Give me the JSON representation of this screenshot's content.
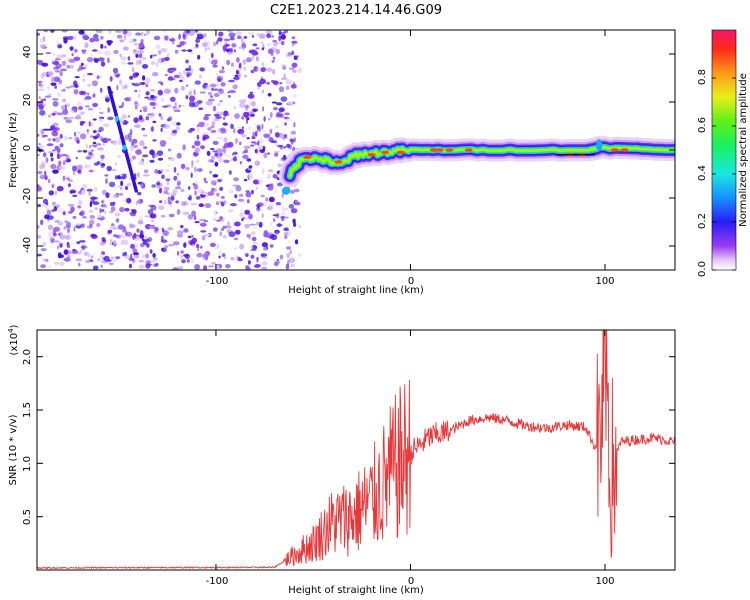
{
  "title": "C2E1.2023.214.14.46.G09",
  "chart_data": [
    {
      "type": "heatmap",
      "name": "spectrogram",
      "xlabel": "Height of straight line (km)",
      "ylabel": "Frequency (Hz)",
      "xlim": [
        -192,
        136
      ],
      "ylim": [
        -50,
        50
      ],
      "xticks": [
        -100,
        0,
        100
      ],
      "yticks": [
        -40,
        -20,
        0,
        20,
        40
      ],
      "xtick_labels": [
        "-100",
        "0",
        "100"
      ],
      "ytick_labels": [
        "-40",
        "-20",
        "0",
        "20",
        "40"
      ],
      "colorbar": {
        "label": "Normalized spectral amplitude",
        "range": [
          0,
          1
        ],
        "ticks": [
          0.0,
          0.2,
          0.4,
          0.6,
          0.8
        ],
        "tick_labels": [
          "0.0",
          "0.2",
          "0.4",
          "0.6",
          "0.8"
        ]
      },
      "features": {
        "noise_region_x": [
          -192,
          -60
        ],
        "diagonal_trace": [
          {
            "x": -155,
            "y": 26
          },
          {
            "x": -141,
            "y": -17
          }
        ],
        "signal_band_center_hz": [
          {
            "x": -62,
            "y": -10
          },
          {
            "x": -55,
            "y": -3
          },
          {
            "x": -45,
            "y": -4
          },
          {
            "x": -36,
            "y": -6
          },
          {
            "x": -28,
            "y": -2
          },
          {
            "x": -15,
            "y": -1
          },
          {
            "x": 0,
            "y": 0
          },
          {
            "x": 40,
            "y": 0
          },
          {
            "x": 92,
            "y": 0
          },
          {
            "x": 97,
            "y": 1
          },
          {
            "x": 136,
            "y": 0
          }
        ]
      }
    },
    {
      "type": "line",
      "name": "snr",
      "xlabel": "Height of straight line (km)",
      "ylabel": "SNR (10 * v/v)",
      "y_scale_label": "(x10",
      "y_scale_exponent": "4",
      "xlim": [
        -192,
        136
      ],
      "ylim": [
        0,
        22500
      ],
      "xticks": [
        -100,
        0,
        100
      ],
      "yticks": [
        5000,
        10000,
        15000,
        20000
      ],
      "xtick_labels": [
        "-100",
        "0",
        "100"
      ],
      "ytick_labels": [
        "0.5",
        "1.0",
        "1.5",
        "2.0"
      ],
      "color": "#e8373a",
      "series": [
        {
          "name": "SNR",
          "envelope": [
            {
              "x": -192,
              "y": 200
            },
            {
              "x": -70,
              "y": 250
            },
            {
              "x": -50,
              "y": 2500
            },
            {
              "x": -40,
              "y": 4500
            },
            {
              "x": -30,
              "y": 5000
            },
            {
              "x": -20,
              "y": 6500
            },
            {
              "x": -10,
              "y": 9000
            },
            {
              "x": 0,
              "y": 11000
            },
            {
              "x": 10,
              "y": 12500
            },
            {
              "x": 20,
              "y": 13000
            },
            {
              "x": 30,
              "y": 14000
            },
            {
              "x": 40,
              "y": 14300
            },
            {
              "x": 50,
              "y": 14000
            },
            {
              "x": 60,
              "y": 13500
            },
            {
              "x": 70,
              "y": 13300
            },
            {
              "x": 80,
              "y": 13600
            },
            {
              "x": 90,
              "y": 13400
            },
            {
              "x": 95,
              "y": 11500
            },
            {
              "x": 100,
              "y": 14000
            },
            {
              "x": 103,
              "y": 9000
            },
            {
              "x": 108,
              "y": 12000
            },
            {
              "x": 115,
              "y": 12200
            },
            {
              "x": 125,
              "y": 12400
            },
            {
              "x": 136,
              "y": 12000
            }
          ]
        }
      ]
    }
  ]
}
